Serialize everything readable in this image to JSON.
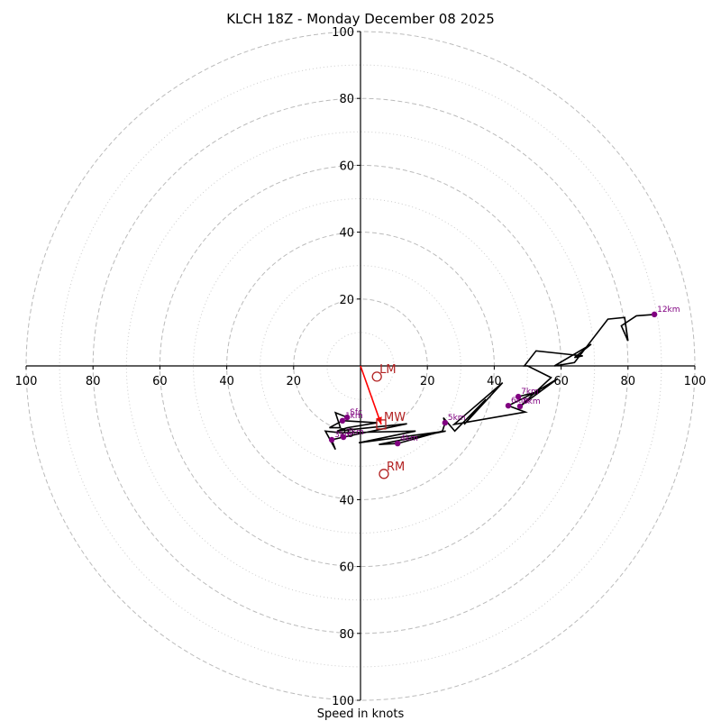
{
  "chart_data": {
    "type": "line",
    "subtype": "hodograph",
    "title": "KLCH 18Z - Monday December 08 2025",
    "xlabel": "Speed in knots",
    "ylabel": "",
    "xlim": [
      -100,
      100
    ],
    "ylim": [
      -100,
      100
    ],
    "grid": true,
    "rings_major": [
      20,
      40,
      60,
      80,
      100
    ],
    "rings_minor": [
      10,
      30,
      50,
      70,
      90
    ],
    "x_tick_labels": [
      "100",
      "80",
      "60",
      "40",
      "20",
      "20",
      "40",
      "60",
      "80",
      "100"
    ],
    "x_tick_values": [
      -100,
      -80,
      -60,
      -40,
      -20,
      20,
      40,
      60,
      80,
      100
    ],
    "y_tick_labels": [
      "100",
      "80",
      "60",
      "40",
      "20",
      "20",
      "40",
      "60",
      "80",
      "100"
    ],
    "y_tick_values": [
      100,
      80,
      60,
      40,
      20,
      -20,
      -40,
      -60,
      -80,
      -100
    ],
    "hodograph_trace": {
      "color": "#000000",
      "u": [
        -4.0,
        -7.5,
        -6.0,
        -9.3,
        -5.4,
        5.0,
        -4.0,
        -7.0,
        13.9,
        -5.1,
        -8.6,
        -7.5,
        -10.5,
        -6.0,
        16.5,
        -0.5,
        25.5,
        5.5,
        11.1,
        24.5,
        25.3,
        24.8,
        28.2,
        37.5,
        31.0,
        42.5,
        28.0,
        49.3,
        44.2,
        52.0,
        47.2,
        54.0,
        50.8,
        59.0,
        47.7,
        57.0,
        50.0,
        49.0,
        52.5,
        66.5,
        64.0,
        69.0,
        58.0,
        64.0,
        74.0,
        79.0,
        80.0,
        78.0,
        82.5,
        87.9
      ],
      "v": [
        -15.4,
        -14.0,
        -18.5,
        -18.5,
        -16.4,
        -17.0,
        -18.5,
        -19.5,
        -17.3,
        -21.3,
        -22.1,
        -25.0,
        -19.5,
        -20.0,
        -19.5,
        -23.0,
        -19.5,
        -23.5,
        -23.2,
        -19.5,
        -17.0,
        -15.5,
        -19.5,
        -10.0,
        -17.5,
        -5.0,
        -17.5,
        -13.8,
        -11.9,
        -8.0,
        -9.2,
        -7.5,
        -8.8,
        -3.8,
        -12.1,
        -3.5,
        0.0,
        0.0,
        4.5,
        3.0,
        2.5,
        6.5,
        0.0,
        1.0,
        14.0,
        14.5,
        7.5,
        12.0,
        15.0,
        15.4
      ]
    },
    "height_markers": [
      {
        "label": "Sfc",
        "u": -4.0,
        "v": -15.4
      },
      {
        "label": "1km",
        "u": -5.4,
        "v": -16.4
      },
      {
        "label": "2km",
        "u": -5.1,
        "v": -21.3
      },
      {
        "label": "3km",
        "u": -8.6,
        "v": -22.1
      },
      {
        "label": "4km",
        "u": 11.1,
        "v": -23.2
      },
      {
        "label": "5km",
        "u": 25.3,
        "v": -17.0
      },
      {
        "label": "6km",
        "u": 44.2,
        "v": -11.9
      },
      {
        "label": "7km",
        "u": 47.2,
        "v": -9.2
      },
      {
        "label": "8km",
        "u": 47.7,
        "v": -12.1
      },
      {
        "label": "12km",
        "u": 87.9,
        "v": 15.4
      }
    ],
    "motion_markers": [
      {
        "label": "LM",
        "u": 4.9,
        "v": -3.2,
        "shape": "circle"
      },
      {
        "label": "MW",
        "u": 6.2,
        "v": -17.5,
        "shape": "square"
      },
      {
        "label": "RM",
        "u": 7.0,
        "v": -32.3,
        "shape": "circle"
      }
    ],
    "mean_wind_arrow": {
      "from_u": 0,
      "from_v": 0,
      "to_u": 6.2,
      "to_v": -17.5,
      "color": "#ff0000"
    },
    "colors": {
      "trace": "#000000",
      "height_marker": "#800080",
      "motion_marker": "#b22222",
      "grid": "#bbbbbb"
    }
  }
}
